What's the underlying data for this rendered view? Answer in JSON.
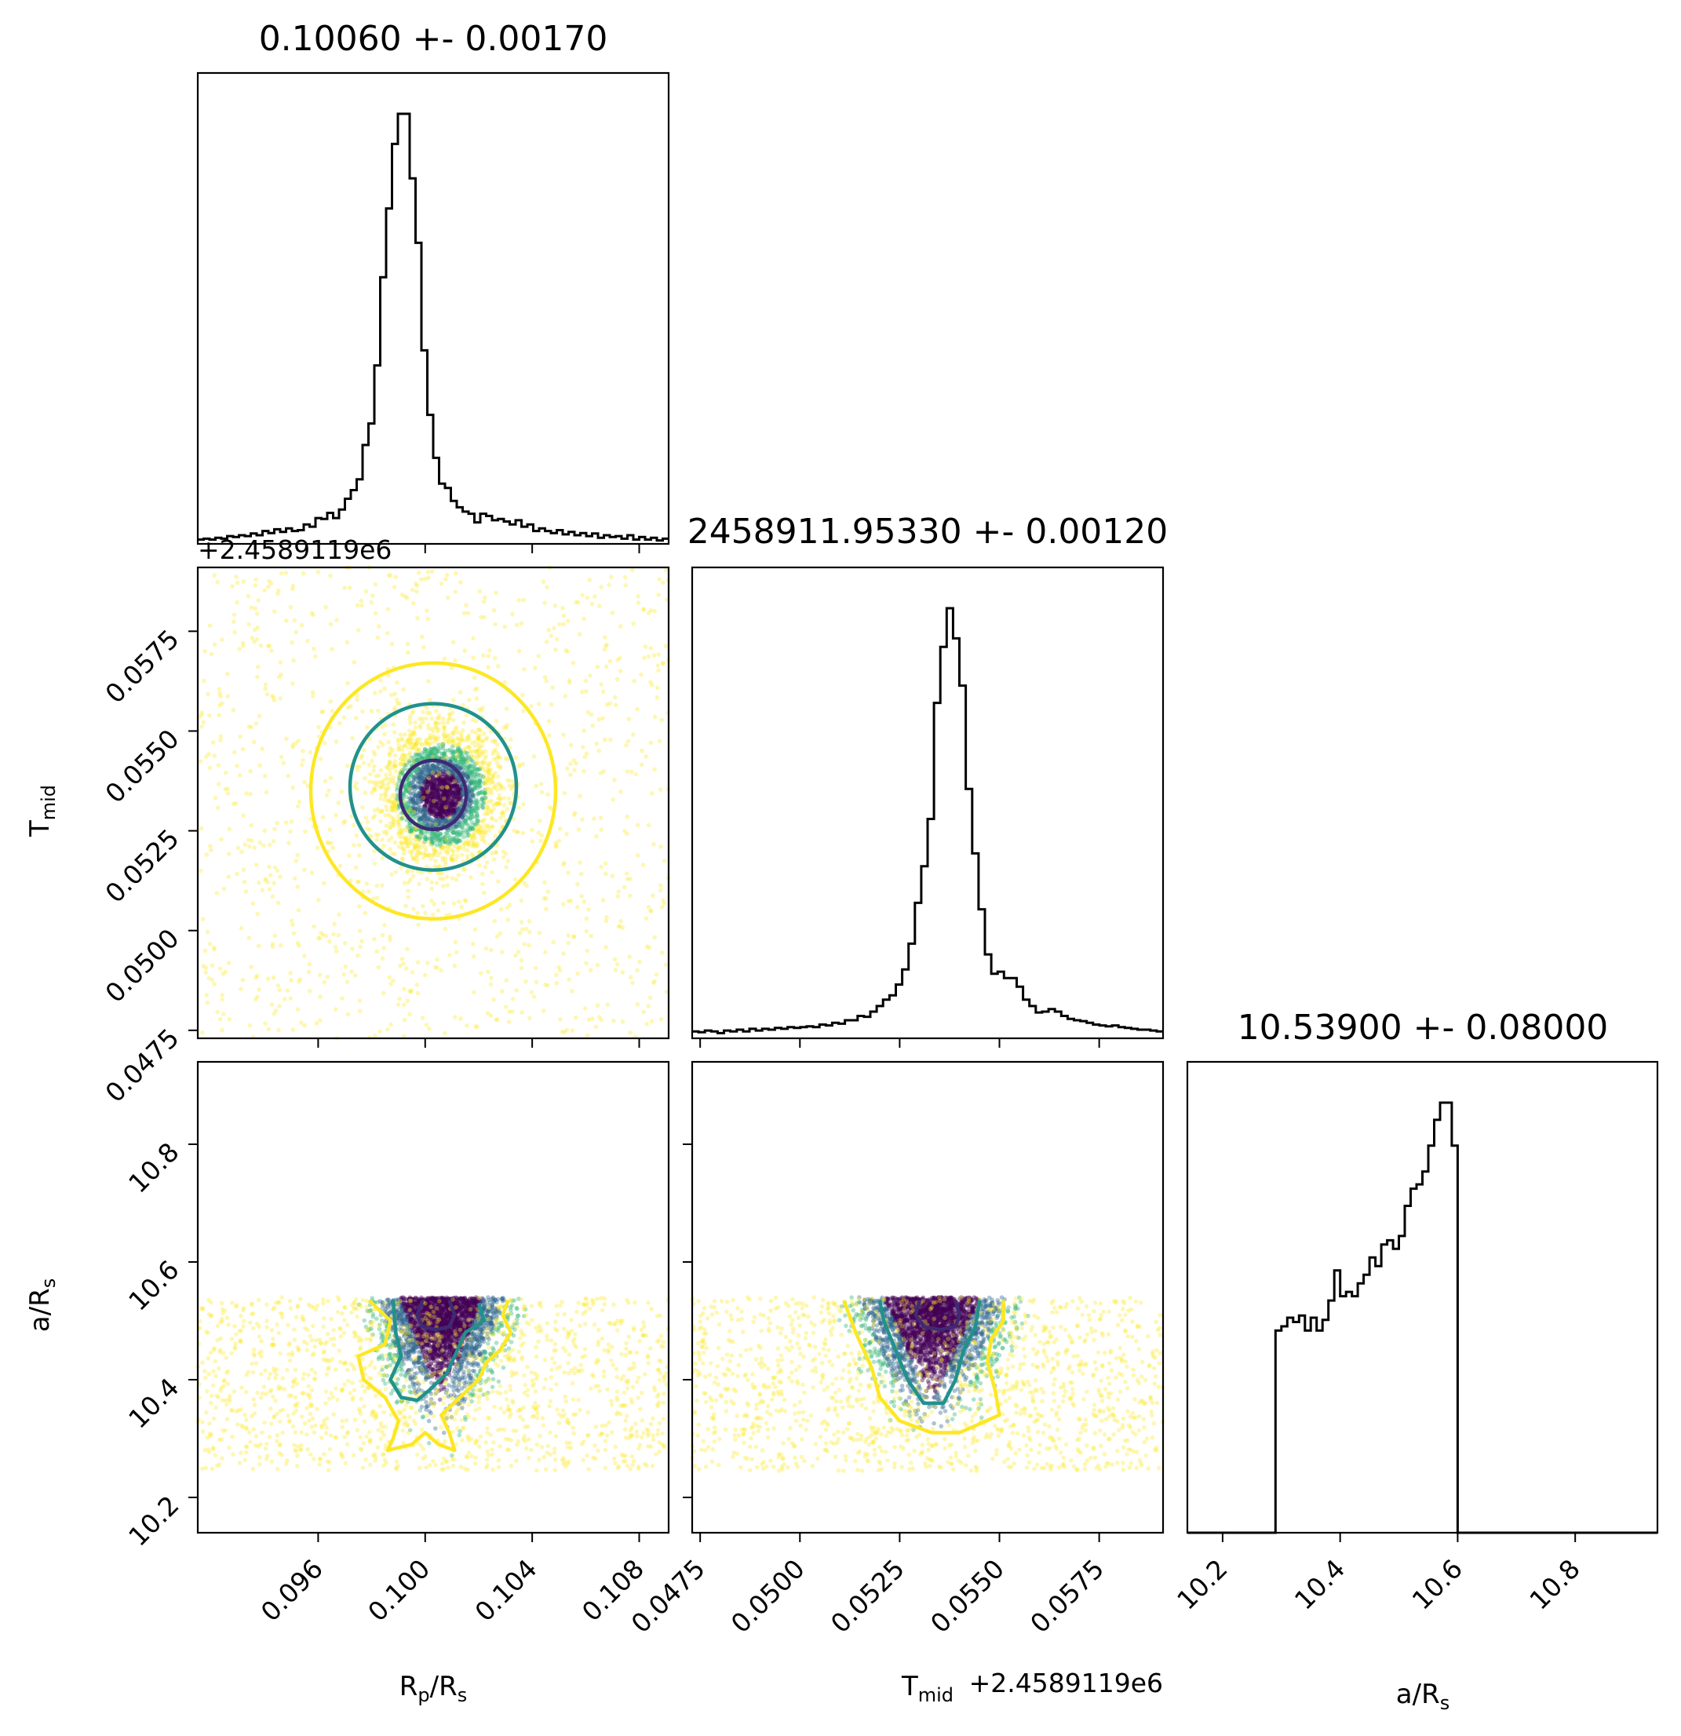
{
  "chart_data": {
    "type": "corner",
    "parameters": [
      {
        "symbol": "Rp/Rs",
        "label_main": "R",
        "label_sub": "p",
        "label_rest": "/R",
        "label_sub2": "s",
        "title": "0.10060 +- 0.00170",
        "median": 0.1006,
        "sigma": 0.0017,
        "range": [
          0.0915,
          0.1091
        ],
        "ticks": [
          "0.096",
          "0.100",
          "0.104",
          "0.108"
        ],
        "tick_values": [
          0.096,
          0.1,
          0.104,
          0.108
        ]
      },
      {
        "symbol": "Tmid",
        "label_main": "T",
        "label_sub": "mid",
        "label_rest": "",
        "label_sub2": "",
        "title": "2458911.95330 +- 0.00120",
        "median": 0.0533,
        "sigma": 0.0012,
        "offset_label": "+2.4589119e6",
        "range": [
          0.0473,
          0.0591
        ],
        "ticks": [
          "0.0475",
          "0.0500",
          "0.0525",
          "0.0550",
          "0.0575"
        ],
        "tick_values": [
          0.0475,
          0.05,
          0.0525,
          0.055,
          0.0575
        ]
      },
      {
        "symbol": "a/Rs",
        "label_main": "a/R",
        "label_sub": "s",
        "label_rest": "",
        "label_sub2": "",
        "title": "10.53900 +- 0.08000",
        "median": 10.539,
        "sigma": 0.08,
        "range": [
          10.14,
          10.94
        ],
        "ticks": [
          "10.2",
          "10.4",
          "10.6",
          "10.8"
        ],
        "tick_values": [
          10.2,
          10.4,
          10.6,
          10.8
        ]
      }
    ],
    "histograms": {
      "rp_rs": [
        0.01,
        0.012,
        0.01,
        0.014,
        0.012,
        0.018,
        0.016,
        0.02,
        0.018,
        0.024,
        0.02,
        0.03,
        0.025,
        0.034,
        0.028,
        0.036,
        0.03,
        0.032,
        0.045,
        0.04,
        0.06,
        0.058,
        0.072,
        0.06,
        0.08,
        0.105,
        0.125,
        0.15,
        0.23,
        0.28,
        0.415,
        0.62,
        0.78,
        0.93,
        1.0,
        1.0,
        0.85,
        0.7,
        0.45,
        0.3,
        0.2,
        0.14,
        0.13,
        0.1,
        0.085,
        0.075,
        0.07,
        0.05,
        0.07,
        0.065,
        0.055,
        0.058,
        0.052,
        0.045,
        0.055,
        0.04,
        0.045,
        0.03,
        0.036,
        0.03,
        0.025,
        0.032,
        0.022,
        0.028,
        0.02,
        0.025,
        0.018,
        0.024,
        0.014,
        0.02,
        0.016,
        0.018,
        0.012,
        0.02,
        0.01,
        0.016,
        0.01,
        0.014,
        0.008,
        0.012
      ],
      "tmid": [
        0.016,
        0.014,
        0.018,
        0.016,
        0.012,
        0.018,
        0.016,
        0.02,
        0.016,
        0.022,
        0.018,
        0.022,
        0.02,
        0.024,
        0.022,
        0.026,
        0.024,
        0.026,
        0.028,
        0.026,
        0.032,
        0.03,
        0.036,
        0.034,
        0.042,
        0.042,
        0.052,
        0.05,
        0.062,
        0.075,
        0.09,
        0.1,
        0.125,
        0.16,
        0.22,
        0.315,
        0.4,
        0.51,
        0.78,
        0.91,
        1.0,
        0.93,
        0.82,
        0.58,
        0.43,
        0.3,
        0.195,
        0.15,
        0.155,
        0.14,
        0.14,
        0.12,
        0.09,
        0.075,
        0.06,
        0.062,
        0.068,
        0.062,
        0.052,
        0.045,
        0.042,
        0.04,
        0.036,
        0.032,
        0.03,
        0.028,
        0.03,
        0.026,
        0.024,
        0.022,
        0.02,
        0.02,
        0.018,
        0.016
      ],
      "a_rs": [
        0,
        0,
        0,
        0,
        0,
        0,
        0,
        0,
        0,
        0,
        0,
        0,
        0,
        0,
        0,
        0.47,
        0.48,
        0.5,
        0.49,
        0.505,
        0.47,
        0.5,
        0.47,
        0.495,
        0.54,
        0.61,
        0.55,
        0.56,
        0.55,
        0.58,
        0.6,
        0.64,
        0.62,
        0.67,
        0.68,
        0.66,
        0.69,
        0.76,
        0.8,
        0.81,
        0.84,
        0.9,
        0.96,
        1.0,
        1.0,
        0.9,
        0,
        0,
        0,
        0,
        0,
        0,
        0,
        0,
        0,
        0,
        0,
        0,
        0,
        0,
        0,
        0,
        0,
        0,
        0,
        0,
        0,
        0,
        0,
        0,
        0,
        0,
        0,
        0,
        0,
        0,
        0,
        0,
        0,
        0
      ]
    },
    "scatter_colors": [
      "#440154",
      "#31688e",
      "#35b779",
      "#fde725"
    ],
    "contour_colors": [
      "#3e2a73",
      "#21918c",
      "#fde725"
    ],
    "grid": false
  }
}
